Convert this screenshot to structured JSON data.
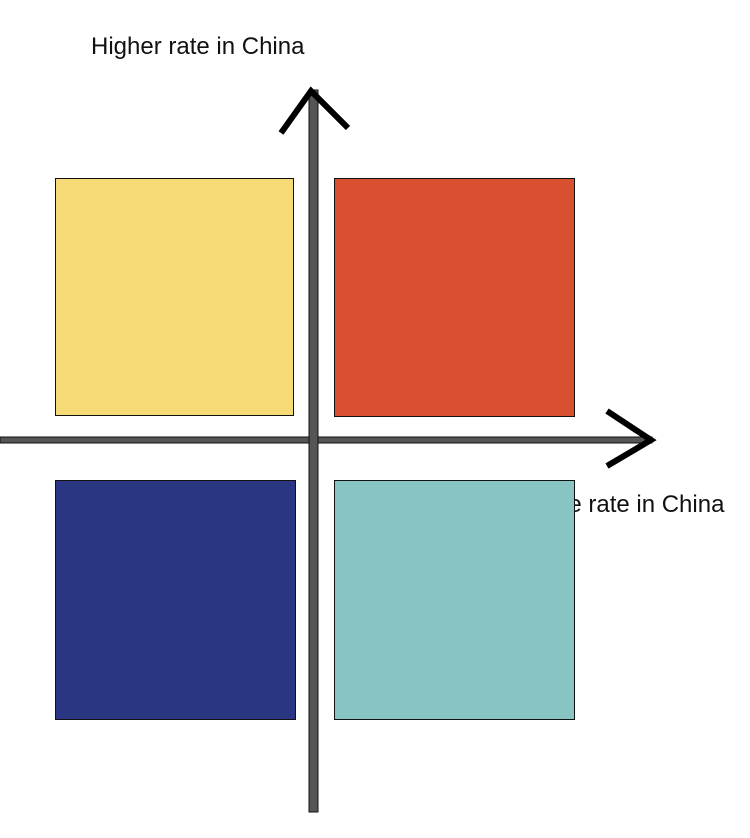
{
  "labels": {
    "y_axis": "Higher rate in China",
    "x_axis": "More rate in China"
  },
  "quadrants": {
    "top_left": {
      "color": "#F6DA75"
    },
    "top_right": {
      "color": "#D8502F"
    },
    "bottom_left": {
      "color": "#2A3682"
    },
    "bottom_right": {
      "color": "#88C4C2"
    }
  },
  "colors": {
    "axis": "#555555",
    "axis_outline": "#111111",
    "arrow": "#000000"
  }
}
